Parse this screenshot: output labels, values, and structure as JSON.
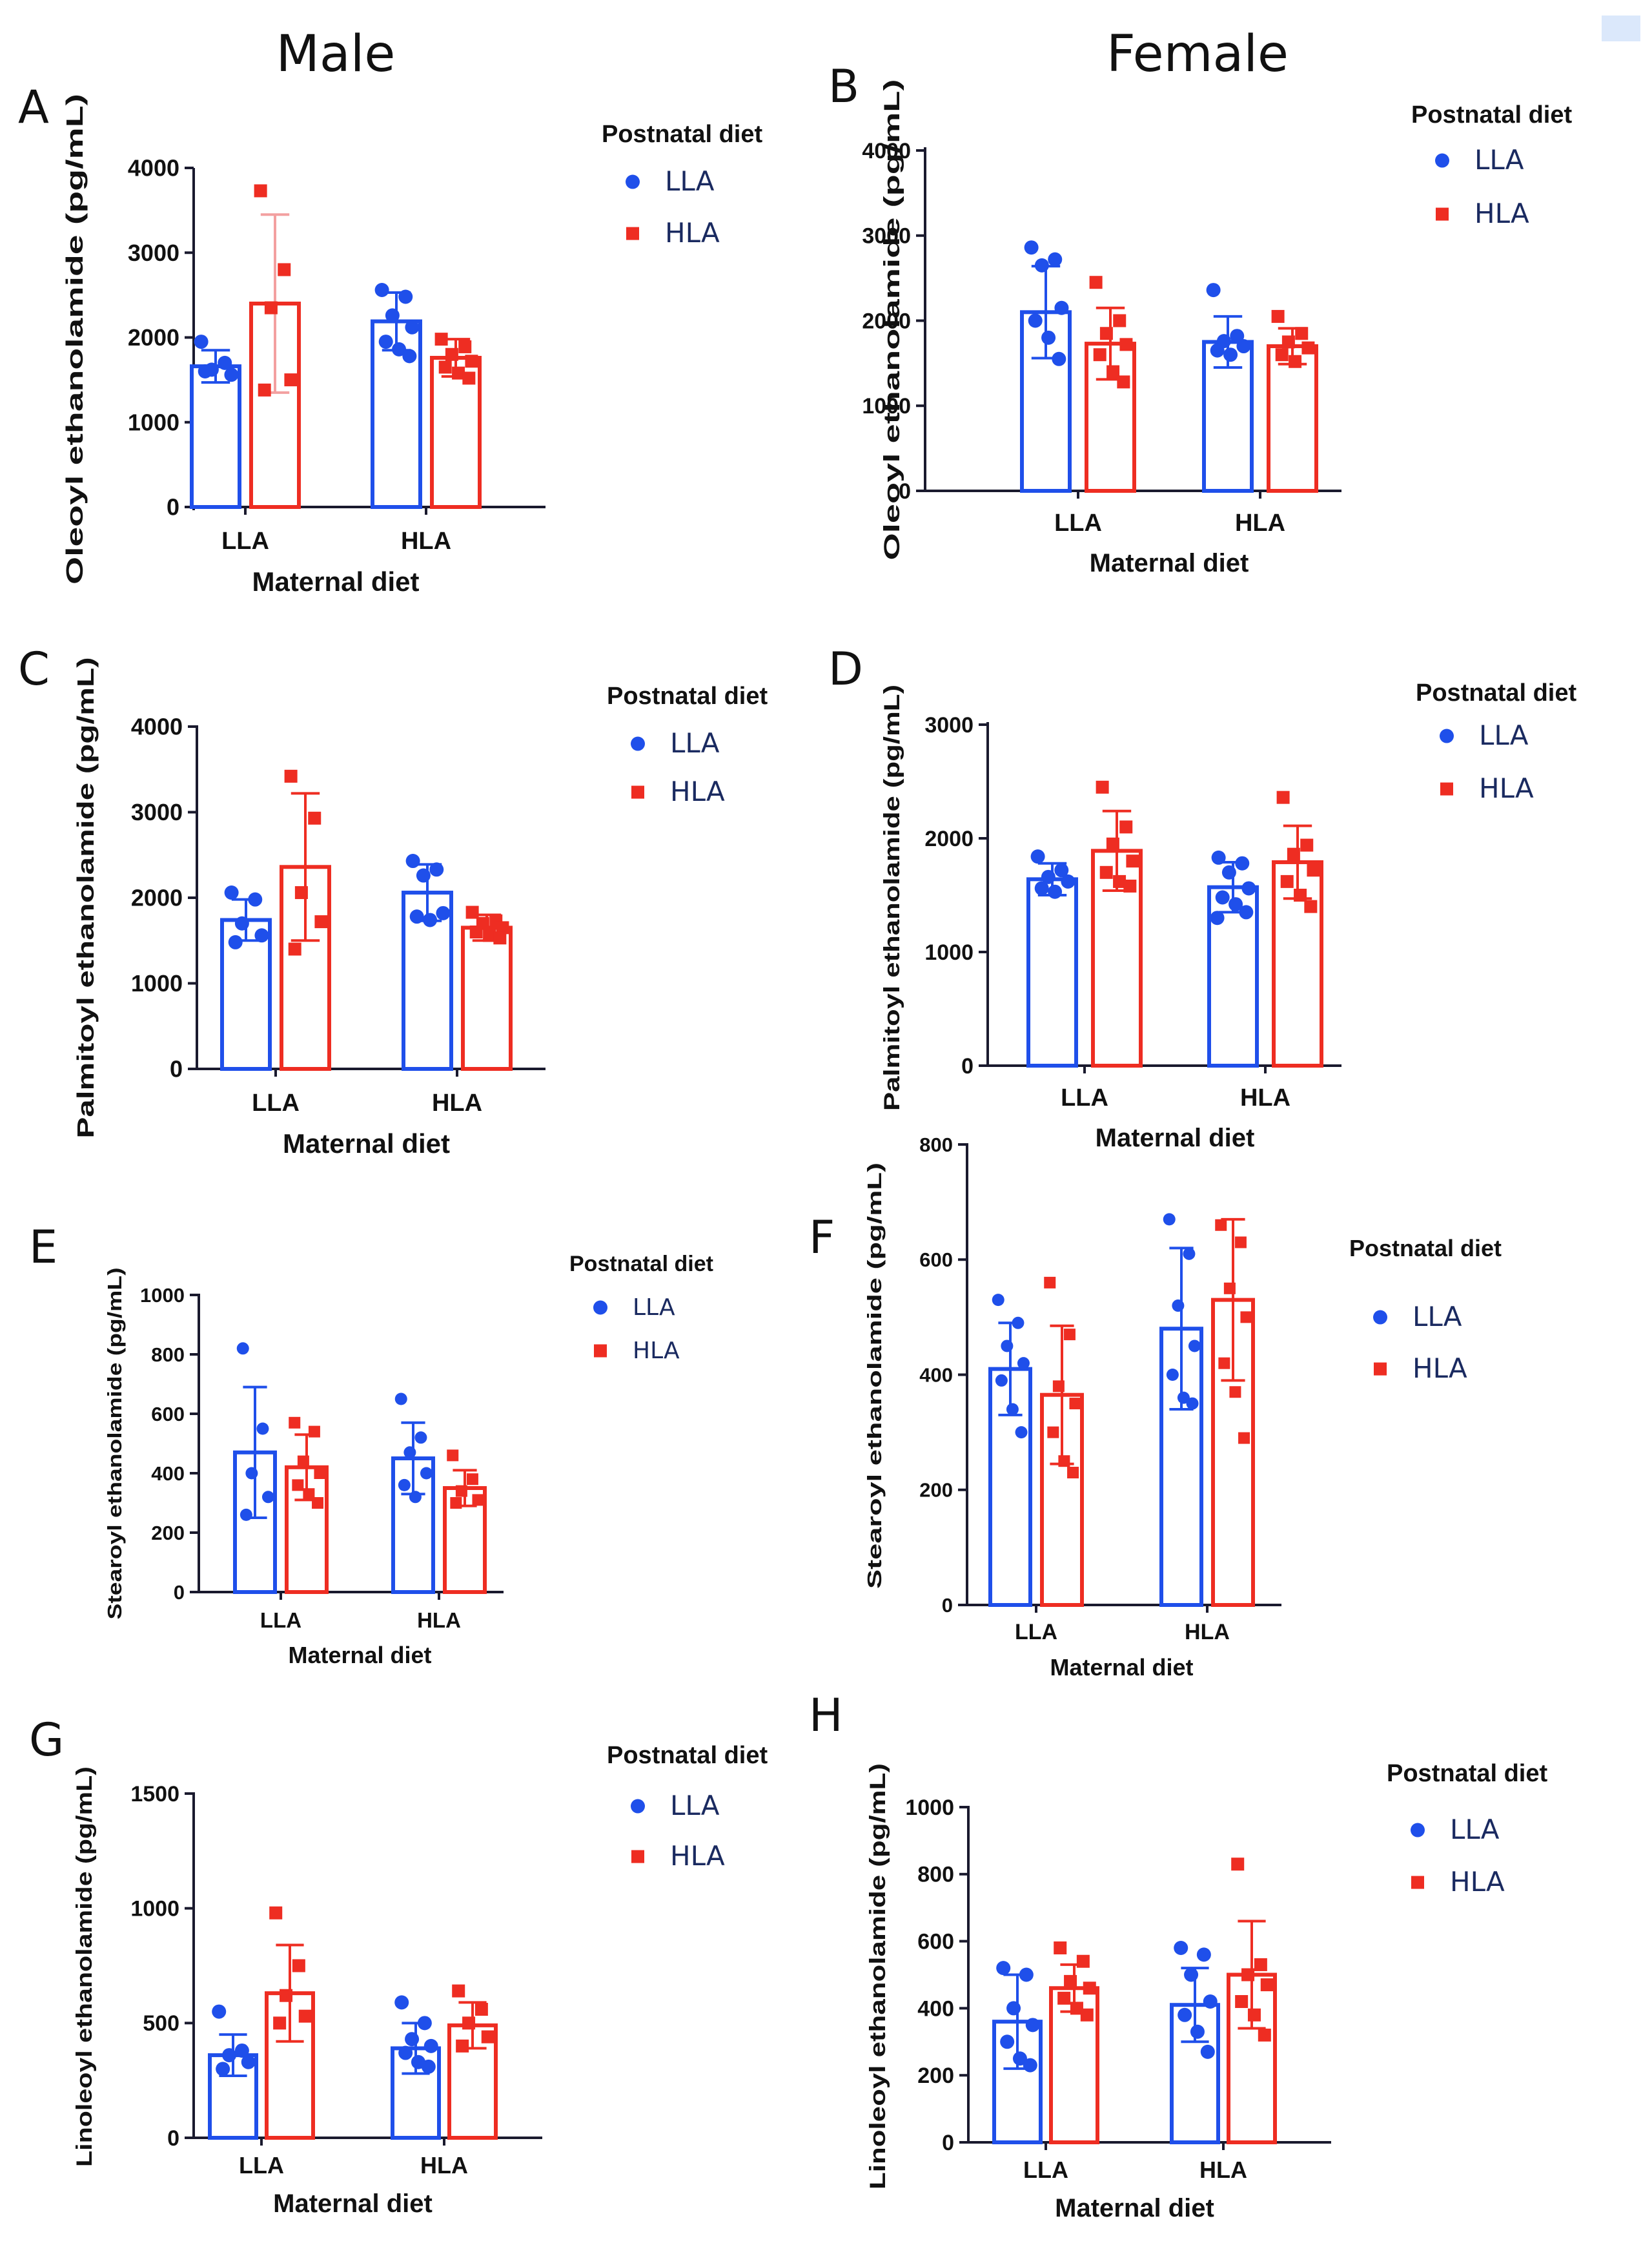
{
  "headers": {
    "male": "Male",
    "female": "Female"
  },
  "colors": {
    "LLA": "#1f4fea",
    "HLA": "#ee2d22",
    "axis": "#1a1a2e",
    "err_light": "#f3a0a0"
  },
  "chart_data": [
    {
      "panel": "A",
      "type": "bar",
      "sex": "Male",
      "ylabel": "Oleoyl ethanolamide (pg/mL)",
      "xlabel": "Maternal diet",
      "categories": [
        "LLA",
        "HLA"
      ],
      "legend_title": "Postnatal diet",
      "legend_position": "right",
      "ylim": [
        0,
        4000
      ],
      "yticks": [
        0,
        1000,
        2000,
        3000,
        4000
      ],
      "series": [
        {
          "name": "LLA",
          "means": [
            1660,
            2190
          ],
          "sd": [
            190,
            340
          ],
          "points": [
            [
              1950,
              1700,
              1620,
              1560,
              1600
            ],
            [
              2560,
              2480,
              2260,
              2120,
              1950,
              1860,
              1780
            ]
          ]
        },
        {
          "name": "HLA",
          "means": [
            2400,
            1760
          ],
          "sd": [
            1050,
            220
          ],
          "points": [
            [
              3730,
              2800,
              2350,
              1500,
              1380
            ],
            [
              1980,
              1890,
              1800,
              1720,
              1650,
              1580,
              1520
            ]
          ]
        }
      ]
    },
    {
      "panel": "B",
      "type": "bar",
      "sex": "Female",
      "ylabel": "Oleoyl ethanolamide (pg/mL)",
      "xlabel": "Maternal diet",
      "categories": [
        "LLA",
        "HLA"
      ],
      "legend_title": "Postnatal diet",
      "legend_position": "right",
      "ylim": [
        0,
        4000
      ],
      "yticks": [
        0,
        1000,
        2000,
        3000,
        4000
      ],
      "series": [
        {
          "name": "LLA",
          "means": [
            2100,
            1750
          ],
          "sd": [
            540,
            300
          ],
          "points": [
            [
              2860,
              2720,
              2650,
              2150,
              2000,
              1800,
              1550
            ],
            [
              2360,
              1820,
              1760,
              1700,
              1650,
              1600
            ]
          ]
        },
        {
          "name": "HLA",
          "means": [
            1730,
            1700
          ],
          "sd": [
            420,
            210
          ],
          "points": [
            [
              2450,
              2000,
              1850,
              1720,
              1600,
              1400,
              1280
            ],
            [
              2050,
              1850,
              1750,
              1680,
              1600,
              1520
            ]
          ]
        }
      ]
    },
    {
      "panel": "C",
      "type": "bar",
      "sex": "Male",
      "ylabel": "Palmitoyl ethanolamide (pg/mL)",
      "xlabel": "Maternal diet",
      "categories": [
        "LLA",
        "HLA"
      ],
      "legend_title": "Postnatal diet",
      "legend_position": "right",
      "ylim": [
        0,
        4000
      ],
      "yticks": [
        0,
        1000,
        2000,
        3000,
        4000
      ],
      "series": [
        {
          "name": "LLA",
          "means": [
            1740,
            2060
          ],
          "sd": [
            240,
            330
          ],
          "points": [
            [
              2060,
              1980,
              1700,
              1560,
              1480
            ],
            [
              2430,
              2330,
              2260,
              1820,
              1780,
              1740
            ]
          ]
        },
        {
          "name": "HLA",
          "means": [
            2360,
            1650
          ],
          "sd": [
            860,
            150
          ],
          "points": [
            [
              3420,
              2930,
              2060,
              1720,
              1400
            ],
            [
              1830,
              1730,
              1700,
              1650,
              1600,
              1560,
              1530
            ]
          ]
        }
      ]
    },
    {
      "panel": "D",
      "type": "bar",
      "sex": "Female",
      "ylabel": "Palmitoyl ethanolamide (pg/mL)",
      "xlabel": "Maternal diet",
      "categories": [
        "LLA",
        "HLA"
      ],
      "legend_title": "Postnatal diet",
      "legend_position": "right",
      "ylim": [
        0,
        3000
      ],
      "yticks": [
        0,
        1000,
        2000,
        3000
      ],
      "series": [
        {
          "name": "LLA",
          "means": [
            1640,
            1570
          ],
          "sd": [
            140,
            220
          ],
          "points": [
            [
              1840,
              1720,
              1660,
              1620,
              1560,
              1530
            ],
            [
              1830,
              1780,
              1700,
              1560,
              1480,
              1420,
              1350,
              1300
            ]
          ]
        },
        {
          "name": "HLA",
          "means": [
            1890,
            1790
          ],
          "sd": [
            350,
            320
          ],
          "points": [
            [
              2450,
              2100,
              1950,
              1800,
              1700,
              1620,
              1580
            ],
            [
              2360,
              1940,
              1860,
              1720,
              1620,
              1500,
              1400
            ]
          ]
        }
      ]
    },
    {
      "panel": "E",
      "type": "bar",
      "sex": "Male",
      "ylabel": "Stearoyl ethanolamide (pg/mL)",
      "xlabel": "Maternal diet",
      "categories": [
        "LLA",
        "HLA"
      ],
      "legend_title": "Postnatal diet",
      "legend_position": "right",
      "ylim": [
        0,
        1000
      ],
      "yticks": [
        0,
        200,
        400,
        600,
        800,
        1000
      ],
      "series": [
        {
          "name": "LLA",
          "means": [
            470,
            450
          ],
          "sd": [
            220,
            120
          ],
          "points": [
            [
              820,
              550,
              400,
              320,
              260
            ],
            [
              650,
              520,
              470,
              400,
              360,
              320
            ]
          ]
        },
        {
          "name": "HLA",
          "means": [
            420,
            350
          ],
          "sd": [
            110,
            60
          ],
          "points": [
            [
              570,
              540,
              440,
              400,
              360,
              330,
              300
            ],
            [
              460,
              380,
              340,
              310,
              300
            ]
          ]
        }
      ]
    },
    {
      "panel": "F",
      "type": "bar",
      "sex": "Female",
      "ylabel": "Stearoyl ethanolamide (pg/mL)",
      "xlabel": "Maternal diet",
      "categories": [
        "LLA",
        "HLA"
      ],
      "legend_title": "Postnatal diet",
      "legend_position": "right",
      "ylim": [
        0,
        800
      ],
      "yticks": [
        0,
        200,
        400,
        600,
        800
      ],
      "series": [
        {
          "name": "LLA",
          "means": [
            410,
            480
          ],
          "sd": [
            80,
            140
          ],
          "points": [
            [
              530,
              490,
              450,
              420,
              390,
              340,
              300
            ],
            [
              670,
              610,
              520,
              450,
              400,
              360,
              350
            ]
          ]
        },
        {
          "name": "HLA",
          "means": [
            365,
            530
          ],
          "sd": [
            120,
            140
          ],
          "points": [
            [
              560,
              470,
              380,
              350,
              300,
              250,
              230
            ],
            [
              660,
              630,
              550,
              500,
              420,
              370,
              290
            ]
          ]
        }
      ]
    },
    {
      "panel": "G",
      "type": "bar",
      "sex": "Male",
      "ylabel": "Linoleoyl ethanolamide (pg/mL)",
      "xlabel": "Maternal diet",
      "categories": [
        "LLA",
        "HLA"
      ],
      "legend_title": "Postnatal diet",
      "legend_position": "right",
      "ylim": [
        0,
        1500
      ],
      "yticks": [
        0,
        500,
        1000,
        1500
      ],
      "series": [
        {
          "name": "LLA",
          "means": [
            360,
            390
          ],
          "sd": [
            90,
            110
          ],
          "points": [
            [
              550,
              380,
              360,
              330,
              300
            ],
            [
              590,
              500,
              430,
              400,
              370,
              330,
              310
            ]
          ]
        },
        {
          "name": "HLA",
          "means": [
            630,
            490
          ],
          "sd": [
            210,
            100
          ],
          "points": [
            [
              980,
              750,
              620,
              530,
              500
            ],
            [
              640,
              560,
              500,
              440,
              400
            ]
          ]
        }
      ]
    },
    {
      "panel": "H",
      "type": "bar",
      "sex": "Female",
      "ylabel": "Linoleoyl ethanolamide (pg/mL)",
      "xlabel": "Maternal diet",
      "categories": [
        "LLA",
        "HLA"
      ],
      "legend_title": "Postnatal diet",
      "legend_position": "right",
      "ylim": [
        0,
        1000
      ],
      "yticks": [
        0,
        200,
        400,
        600,
        800,
        1000
      ],
      "series": [
        {
          "name": "LLA",
          "means": [
            360,
            410
          ],
          "sd": [
            140,
            110
          ],
          "points": [
            [
              520,
              500,
              400,
              350,
              300,
              250,
              230
            ],
            [
              580,
              560,
              500,
              420,
              380,
              330,
              270
            ]
          ]
        },
        {
          "name": "HLA",
          "means": [
            460,
            500
          ],
          "sd": [
            70,
            160
          ],
          "points": [
            [
              580,
              540,
              480,
              460,
              430,
              400,
              380
            ],
            [
              830,
              530,
              500,
              470,
              420,
              380,
              320
            ]
          ]
        }
      ]
    }
  ]
}
